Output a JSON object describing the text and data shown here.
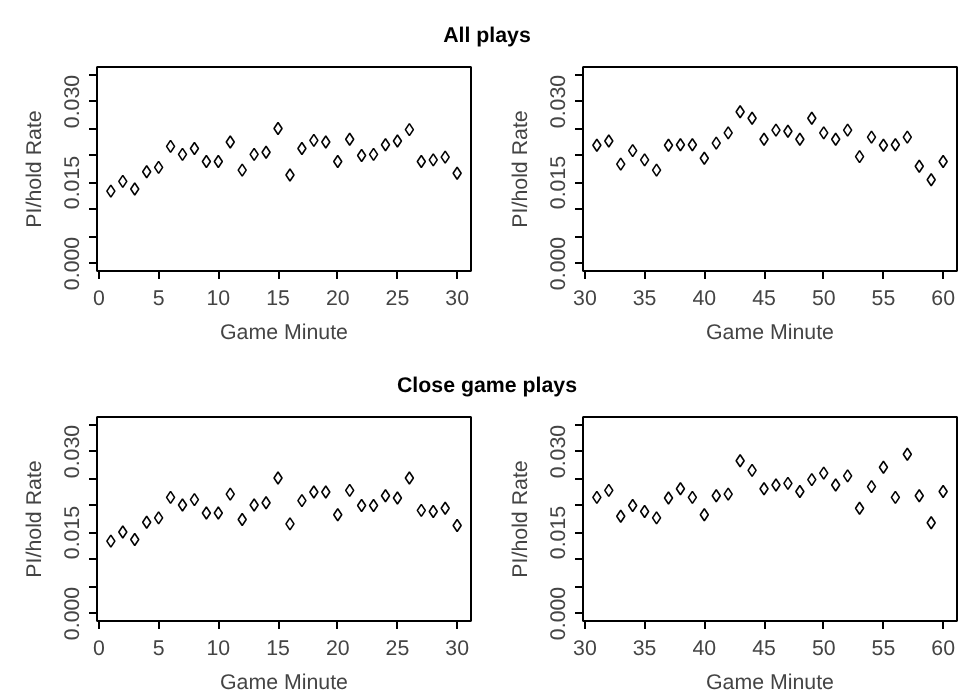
{
  "chart_data": [
    {
      "type": "scatter",
      "title": "All plays",
      "xlabel": "Game Minute",
      "ylabel": "PI/hold Rate",
      "marker": "diamond",
      "x": [
        1,
        2,
        3,
        4,
        5,
        6,
        7,
        8,
        9,
        10,
        11,
        12,
        13,
        14,
        15,
        16,
        17,
        18,
        19,
        20,
        21,
        22,
        23,
        24,
        25,
        26,
        27,
        28,
        29,
        30
      ],
      "series": [
        {
          "color": "#000000",
          "values": [
            0.0134,
            0.0152,
            0.0138,
            0.017,
            0.0178,
            0.0217,
            0.0202,
            0.0213,
            0.0189,
            0.0189,
            0.0225,
            0.0173,
            0.0202,
            0.0206,
            0.025,
            0.0164,
            0.0213,
            0.0228,
            0.0225,
            0.0189,
            0.023,
            0.02,
            0.0202,
            0.022,
            0.0227,
            0.0248,
            0.0189,
            0.0192,
            0.0197,
            0.0167
          ]
        }
      ],
      "xlim": [
        -0.16,
        31.16
      ],
      "xticks": [
        0,
        5,
        10,
        15,
        20,
        25,
        30
      ],
      "ylim": [
        -0.0014,
        0.0364
      ],
      "yticks": [
        {
          "value": 0,
          "label": "0.000"
        },
        {
          "value": 0.005,
          "label": null
        },
        {
          "value": 0.01,
          "label": null
        },
        {
          "value": 0.015,
          "label": "0.015"
        },
        {
          "value": 0.02,
          "label": null
        },
        {
          "value": 0.025,
          "label": null
        },
        {
          "value": 0.03,
          "label": "0.030"
        },
        {
          "value": 0.035,
          "label": null
        }
      ]
    },
    {
      "type": "scatter",
      "xlabel": "Game Minute",
      "ylabel": "PI/hold Rate",
      "marker": "diamond",
      "x": [
        31,
        32,
        33,
        34,
        35,
        36,
        37,
        38,
        39,
        40,
        41,
        42,
        43,
        44,
        45,
        46,
        47,
        48,
        49,
        50,
        51,
        52,
        53,
        54,
        55,
        56,
        57,
        58,
        59,
        60
      ],
      "series": [
        {
          "color": "#000000",
          "values": [
            0.0219,
            0.0227,
            0.0184,
            0.0209,
            0.0192,
            0.0173,
            0.0219,
            0.022,
            0.022,
            0.0195,
            0.0223,
            0.0242,
            0.0281,
            0.0269,
            0.023,
            0.0247,
            0.0245,
            0.023,
            0.0269,
            0.0242,
            0.023,
            0.0247,
            0.0198,
            0.0234,
            0.0219,
            0.022,
            0.0234,
            0.018,
            0.0155,
            0.0189
          ]
        }
      ],
      "xlim": [
        29.84,
        61.16
      ],
      "xticks": [
        30,
        35,
        40,
        45,
        50,
        55,
        60
      ],
      "ylim": [
        -0.0014,
        0.0364
      ],
      "yticks": [
        {
          "value": 0,
          "label": "0.000"
        },
        {
          "value": 0.005,
          "label": null
        },
        {
          "value": 0.01,
          "label": null
        },
        {
          "value": 0.015,
          "label": "0.015"
        },
        {
          "value": 0.02,
          "label": null
        },
        {
          "value": 0.025,
          "label": null
        },
        {
          "value": 0.03,
          "label": "0.030"
        },
        {
          "value": 0.035,
          "label": null
        }
      ]
    },
    {
      "type": "scatter",
      "title": "Close game plays",
      "xlabel": "Game Minute",
      "ylabel": "PI/hold Rate",
      "marker": "diamond",
      "x": [
        1,
        2,
        3,
        4,
        5,
        6,
        7,
        8,
        9,
        10,
        11,
        12,
        13,
        14,
        15,
        16,
        17,
        18,
        19,
        20,
        21,
        22,
        23,
        24,
        25,
        26,
        27,
        28,
        29,
        30
      ],
      "series": [
        {
          "color": "#000000",
          "values": [
            0.0134,
            0.0151,
            0.0137,
            0.0169,
            0.0177,
            0.0215,
            0.0201,
            0.0211,
            0.0186,
            0.0186,
            0.0221,
            0.0174,
            0.0201,
            0.0205,
            0.0251,
            0.0166,
            0.0209,
            0.0225,
            0.0225,
            0.0183,
            0.0228,
            0.02,
            0.02,
            0.0218,
            0.0214,
            0.0251,
            0.0191,
            0.0189,
            0.0195,
            0.0163
          ]
        }
      ],
      "xlim": [
        -0.16,
        31.16
      ],
      "xticks": [
        0,
        5,
        10,
        15,
        20,
        25,
        30
      ],
      "ylim": [
        -0.0014,
        0.0364
      ],
      "yticks": [
        {
          "value": 0,
          "label": "0.000"
        },
        {
          "value": 0.005,
          "label": null
        },
        {
          "value": 0.01,
          "label": null
        },
        {
          "value": 0.015,
          "label": "0.015"
        },
        {
          "value": 0.02,
          "label": null
        },
        {
          "value": 0.025,
          "label": null
        },
        {
          "value": 0.03,
          "label": "0.030"
        },
        {
          "value": 0.035,
          "label": null
        }
      ]
    },
    {
      "type": "scatter",
      "xlabel": "Game Minute",
      "ylabel": "PI/hold Rate",
      "marker": "diamond",
      "x": [
        31,
        32,
        33,
        34,
        35,
        36,
        37,
        38,
        39,
        40,
        41,
        42,
        43,
        44,
        45,
        46,
        47,
        48,
        49,
        50,
        51,
        52,
        53,
        54,
        55,
        56,
        57,
        58,
        59,
        60
      ],
      "series": [
        {
          "color": "#000000",
          "values": [
            0.0215,
            0.0228,
            0.018,
            0.02,
            0.0189,
            0.0177,
            0.0214,
            0.0231,
            0.0215,
            0.0183,
            0.0218,
            0.0221,
            0.0283,
            0.0265,
            0.0231,
            0.0238,
            0.0241,
            0.0226,
            0.0248,
            0.026,
            0.0238,
            0.0255,
            0.0195,
            0.0235,
            0.0271,
            0.0215,
            0.0295,
            0.0218,
            0.0168,
            0.0226
          ]
        }
      ],
      "xlim": [
        29.84,
        61.16
      ],
      "xticks": [
        30,
        35,
        40,
        45,
        50,
        55,
        60
      ],
      "ylim": [
        -0.0014,
        0.0364
      ],
      "yticks": [
        {
          "value": 0,
          "label": "0.000"
        },
        {
          "value": 0.005,
          "label": null
        },
        {
          "value": 0.01,
          "label": null
        },
        {
          "value": 0.015,
          "label": "0.015"
        },
        {
          "value": 0.02,
          "label": null
        },
        {
          "value": 0.025,
          "label": null
        },
        {
          "value": 0.03,
          "label": "0.030"
        },
        {
          "value": 0.035,
          "label": null
        }
      ]
    }
  ]
}
